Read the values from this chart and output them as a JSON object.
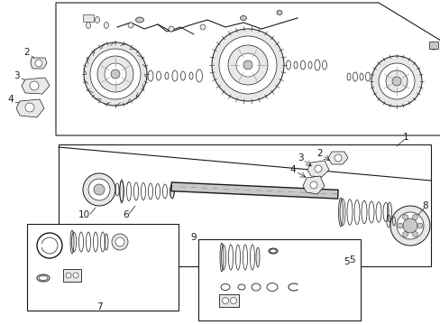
{
  "bg_color": "#ffffff",
  "line_color": "#1a1a1a",
  "gray_fill": "#c8c8c8",
  "light_fill": "#e8e8e8",
  "dark_fill": "#888888",
  "white": "#ffffff"
}
